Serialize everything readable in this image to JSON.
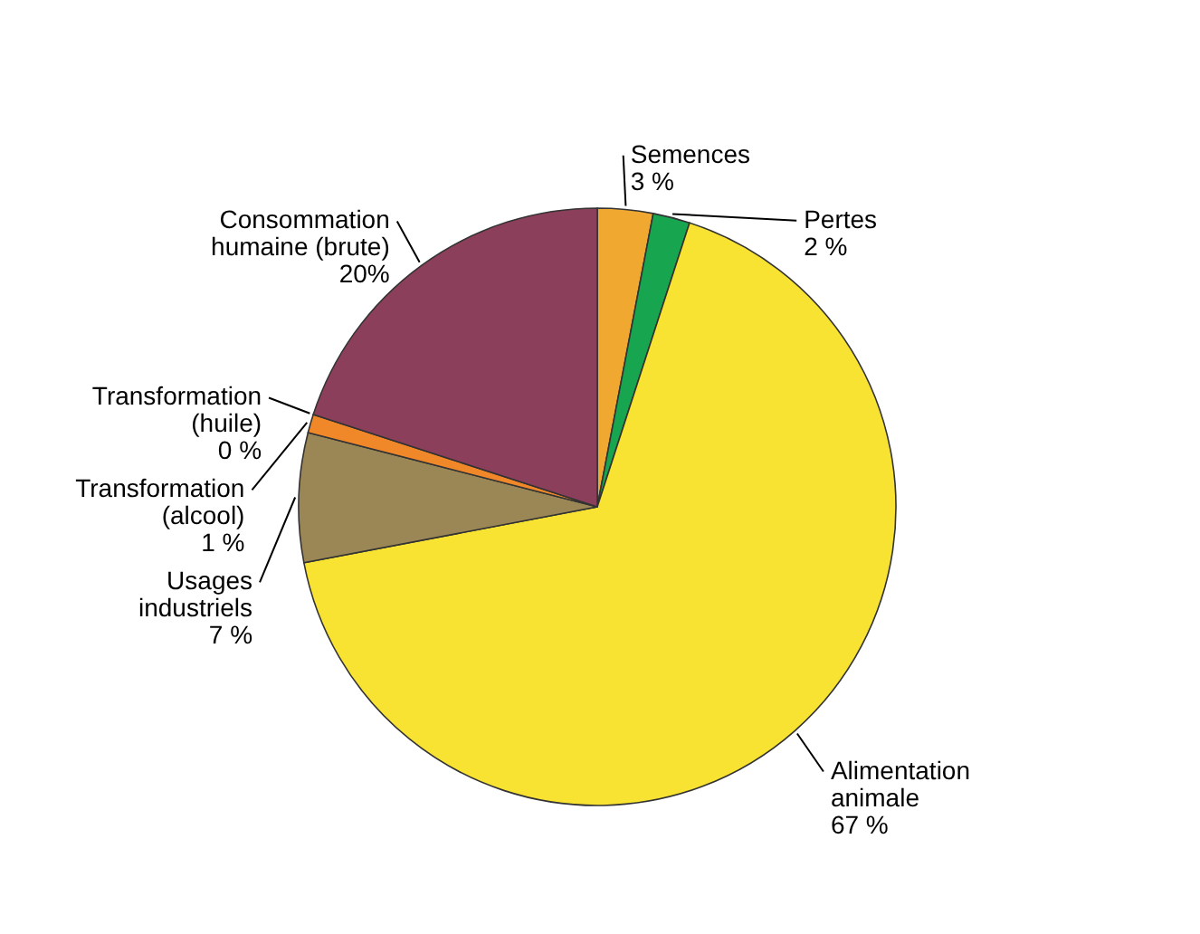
{
  "chart_data": {
    "type": "pie",
    "categories": [
      "Semences",
      "Pertes",
      "Alimentation animale",
      "Usages industriels",
      "Transformation (alcool)",
      "Transformation (huile)",
      "Consommation humaine (brute)"
    ],
    "values": [
      3,
      2,
      67,
      7,
      1,
      0,
      20
    ],
    "colors": [
      "#f0a830",
      "#17a64f",
      "#f9e332",
      "#9b8656",
      "#f0882a",
      "#d9d9d9",
      "#8c3f5b"
    ],
    "value_labels": [
      "3 %",
      "2 %",
      "67 %",
      "7 %",
      "1 %",
      "0 %",
      "20%"
    ]
  }
}
